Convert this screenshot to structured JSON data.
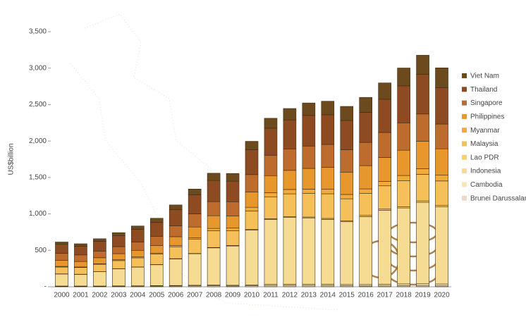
{
  "chart_data": {
    "type": "stacked_bar",
    "y_label": "US$billion",
    "categories": [
      "2000",
      "2001",
      "2002",
      "2003",
      "2004",
      "2005",
      "2006",
      "2007",
      "2008",
      "2009",
      "2010",
      "2011",
      "2012",
      "2013",
      "2014",
      "2015",
      "2016",
      "2017",
      "2018",
      "2019",
      "2020"
    ],
    "ylim": [
      0,
      3500
    ],
    "yticks": [
      {
        "value": 0,
        "label": "-"
      },
      500,
      {
        "value": 1000,
        "label": "1,000"
      },
      {
        "value": 1500,
        "label": "1,500"
      },
      {
        "value": 2000,
        "label": "2,000"
      },
      {
        "value": 2500,
        "label": "2,500"
      },
      {
        "value": 3000,
        "label": "3,000"
      },
      {
        "value": 3500,
        "label": "3,500"
      }
    ],
    "series": [
      {
        "name": "Brunei Darussalam",
        "color": "#efd9c6",
        "values": [
          6,
          6,
          6,
          7,
          8,
          10,
          11,
          12,
          14,
          11,
          13,
          19,
          19,
          18,
          17,
          13,
          11,
          12,
          14,
          13,
          12
        ]
      },
      {
        "name": "Cambodia",
        "color": "#f9e6b8",
        "values": [
          4,
          4,
          4,
          5,
          5,
          6,
          7,
          9,
          10,
          10,
          11,
          13,
          14,
          15,
          17,
          18,
          20,
          22,
          25,
          27,
          26
        ]
      },
      {
        "name": "Indonesia",
        "color": "#f6dc92",
        "values": [
          165,
          160,
          196,
          235,
          257,
          286,
          364,
          432,
          510,
          539,
          755,
          893,
          918,
          912,
          891,
          861,
          932,
          1015,
          1042,
          1119,
          1058
        ]
      },
      {
        "name": "Lao PDR",
        "color": "#f7cf78",
        "values": [
          2,
          2,
          2,
          2,
          2,
          3,
          4,
          4,
          5,
          6,
          7,
          8,
          10,
          12,
          13,
          14,
          16,
          17,
          18,
          19,
          19
        ]
      },
      {
        "name": "Malaysia",
        "color": "#f5bf5a",
        "values": [
          94,
          92,
          101,
          110,
          125,
          144,
          163,
          194,
          231,
          202,
          255,
          298,
          314,
          323,
          338,
          301,
          301,
          319,
          358,
          365,
          337
        ]
      },
      {
        "name": "Myanmar",
        "color": "#f1ab38",
        "values": [
          9,
          7,
          7,
          11,
          12,
          13,
          15,
          20,
          31,
          37,
          50,
          60,
          60,
          60,
          65,
          60,
          63,
          61,
          70,
          76,
          79
        ]
      },
      {
        "name": "Philippines",
        "color": "#e8972c",
        "values": [
          81,
          76,
          82,
          84,
          91,
          103,
          123,
          149,
          174,
          168,
          208,
          234,
          262,
          284,
          297,
          306,
          319,
          328,
          347,
          377,
          362
        ]
      },
      {
        "name": "Singapore",
        "color": "#bd6c2e",
        "values": [
          96,
          90,
          92,
          97,
          115,
          128,
          148,
          180,
          193,
          194,
          240,
          280,
          295,
          307,
          315,
          308,
          319,
          343,
          376,
          375,
          340
        ]
      },
      {
        "name": "Thailand",
        "color": "#8e4a20",
        "values": [
          126,
          120,
          134,
          152,
          173,
          189,
          222,
          263,
          291,
          282,
          341,
          371,
          398,
          420,
          407,
          401,
          413,
          456,
          507,
          544,
          500
        ]
      },
      {
        "name": "Viet Nam",
        "color": "#6c4a1e",
        "values": [
          31,
          33,
          35,
          40,
          46,
          58,
          66,
          78,
          99,
          106,
          116,
          136,
          156,
          171,
          186,
          193,
          205,
          224,
          245,
          262,
          271
        ]
      }
    ]
  }
}
